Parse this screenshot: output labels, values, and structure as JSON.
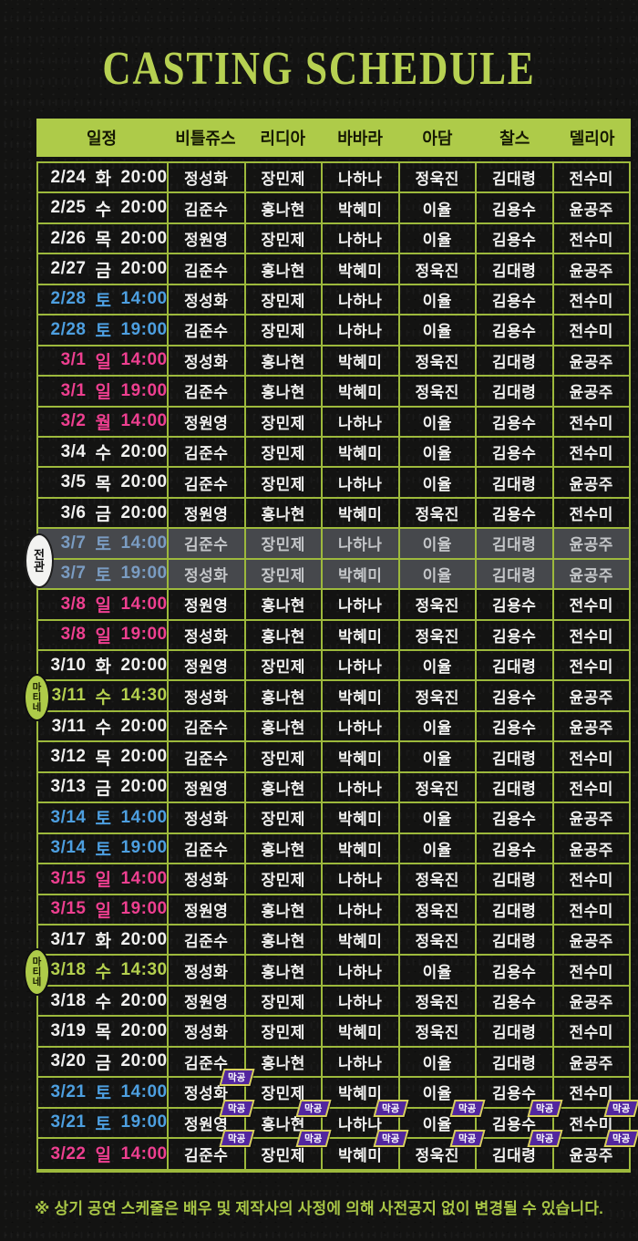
{
  "title": "CASTING SCHEDULE",
  "footer": "※ 상기 공연 스케줄은 배우 및 제작사의 사정에 의해 사전공지 없이 변경될 수 있습니다.",
  "columns": [
    "일정",
    "비틀쥬스",
    "리디아",
    "바바라",
    "아담",
    "찰스",
    "델리아"
  ],
  "badge_labels": {
    "final": "막공",
    "soldout": "전관",
    "matinee": "마티네"
  },
  "colors": {
    "background": "#131312",
    "accent_green": "#aecb49",
    "grid_green": "#9db93c",
    "saturday_blue": "#4d9fe0",
    "sunday_pink": "#ee3f90",
    "matinee_green": "#b4d04e",
    "soldout_gray": "#46484c",
    "final_badge_purple": "#52269f",
    "final_badge_border": "#d8d05c"
  },
  "rows": [
    {
      "date": "2/24",
      "day": "화",
      "time": "20:00",
      "type": "wd",
      "cast": [
        "정성화",
        "장민제",
        "나하나",
        "정욱진",
        "김대령",
        "전수미"
      ]
    },
    {
      "date": "2/25",
      "day": "수",
      "time": "20:00",
      "type": "wd",
      "cast": [
        "김준수",
        "홍나현",
        "박혜미",
        "이율",
        "김용수",
        "윤공주"
      ]
    },
    {
      "date": "2/26",
      "day": "목",
      "time": "20:00",
      "type": "wd",
      "cast": [
        "정원영",
        "장민제",
        "나하나",
        "이율",
        "김용수",
        "전수미"
      ]
    },
    {
      "date": "2/27",
      "day": "금",
      "time": "20:00",
      "type": "wd",
      "cast": [
        "김준수",
        "홍나현",
        "박혜미",
        "정욱진",
        "김대령",
        "윤공주"
      ]
    },
    {
      "date": "2/28",
      "day": "토",
      "time": "14:00",
      "type": "sat",
      "cast": [
        "정성화",
        "장민제",
        "나하나",
        "이율",
        "김용수",
        "전수미"
      ]
    },
    {
      "date": "2/28",
      "day": "토",
      "time": "19:00",
      "type": "sat",
      "cast": [
        "김준수",
        "장민제",
        "나하나",
        "이율",
        "김용수",
        "전수미"
      ]
    },
    {
      "date": "3/1",
      "day": "일",
      "time": "14:00",
      "type": "sun",
      "cast": [
        "정성화",
        "홍나현",
        "박혜미",
        "정욱진",
        "김대령",
        "윤공주"
      ]
    },
    {
      "date": "3/1",
      "day": "일",
      "time": "19:00",
      "type": "sun",
      "cast": [
        "김준수",
        "홍나현",
        "박혜미",
        "정욱진",
        "김대령",
        "윤공주"
      ]
    },
    {
      "date": "3/2",
      "day": "월",
      "time": "14:00",
      "type": "sun",
      "cast": [
        "정원영",
        "장민제",
        "나하나",
        "이율",
        "김용수",
        "전수미"
      ]
    },
    {
      "date": "3/4",
      "day": "수",
      "time": "20:00",
      "type": "wd",
      "cast": [
        "김준수",
        "장민제",
        "박혜미",
        "이율",
        "김용수",
        "전수미"
      ]
    },
    {
      "date": "3/5",
      "day": "목",
      "time": "20:00",
      "type": "wd",
      "cast": [
        "김준수",
        "장민제",
        "나하나",
        "이율",
        "김대령",
        "윤공주"
      ]
    },
    {
      "date": "3/6",
      "day": "금",
      "time": "20:00",
      "type": "wd",
      "cast": [
        "정원영",
        "홍나현",
        "박혜미",
        "정욱진",
        "김용수",
        "전수미"
      ]
    },
    {
      "date": "3/7",
      "day": "토",
      "time": "14:00",
      "type": "sat",
      "soldout": true,
      "cast": [
        "김준수",
        "장민제",
        "나하나",
        "이율",
        "김대령",
        "윤공주"
      ]
    },
    {
      "date": "3/7",
      "day": "토",
      "time": "19:00",
      "type": "sat",
      "soldout": true,
      "cast": [
        "정성화",
        "장민제",
        "박혜미",
        "이율",
        "김대령",
        "윤공주"
      ]
    },
    {
      "date": "3/8",
      "day": "일",
      "time": "14:00",
      "type": "sun",
      "cast": [
        "정원영",
        "홍나현",
        "나하나",
        "정욱진",
        "김용수",
        "전수미"
      ]
    },
    {
      "date": "3/8",
      "day": "일",
      "time": "19:00",
      "type": "sun",
      "cast": [
        "정성화",
        "홍나현",
        "박혜미",
        "정욱진",
        "김용수",
        "전수미"
      ]
    },
    {
      "date": "3/10",
      "day": "화",
      "time": "20:00",
      "type": "wd",
      "cast": [
        "정원영",
        "장민제",
        "나하나",
        "이율",
        "김대령",
        "전수미"
      ]
    },
    {
      "date": "3/11",
      "day": "수",
      "time": "14:30",
      "type": "mat",
      "cast": [
        "정성화",
        "홍나현",
        "박혜미",
        "정욱진",
        "김용수",
        "윤공주"
      ]
    },
    {
      "date": "3/11",
      "day": "수",
      "time": "20:00",
      "type": "wd",
      "cast": [
        "김준수",
        "홍나현",
        "나하나",
        "이율",
        "김용수",
        "윤공주"
      ]
    },
    {
      "date": "3/12",
      "day": "목",
      "time": "20:00",
      "type": "wd",
      "cast": [
        "김준수",
        "장민제",
        "박혜미",
        "이율",
        "김대령",
        "전수미"
      ]
    },
    {
      "date": "3/13",
      "day": "금",
      "time": "20:00",
      "type": "wd",
      "cast": [
        "정원영",
        "홍나현",
        "나하나",
        "정욱진",
        "김대령",
        "전수미"
      ]
    },
    {
      "date": "3/14",
      "day": "토",
      "time": "14:00",
      "type": "sat",
      "cast": [
        "정성화",
        "장민제",
        "박혜미",
        "이율",
        "김용수",
        "윤공주"
      ]
    },
    {
      "date": "3/14",
      "day": "토",
      "time": "19:00",
      "type": "sat",
      "cast": [
        "김준수",
        "홍나현",
        "박혜미",
        "이율",
        "김용수",
        "윤공주"
      ]
    },
    {
      "date": "3/15",
      "day": "일",
      "time": "14:00",
      "type": "sun",
      "cast": [
        "정성화",
        "장민제",
        "나하나",
        "정욱진",
        "김대령",
        "전수미"
      ]
    },
    {
      "date": "3/15",
      "day": "일",
      "time": "19:00",
      "type": "sun",
      "cast": [
        "정원영",
        "홍나현",
        "나하나",
        "정욱진",
        "김대령",
        "전수미"
      ]
    },
    {
      "date": "3/17",
      "day": "화",
      "time": "20:00",
      "type": "wd",
      "cast": [
        "김준수",
        "홍나현",
        "박혜미",
        "정욱진",
        "김대령",
        "윤공주"
      ]
    },
    {
      "date": "3/18",
      "day": "수",
      "time": "14:30",
      "type": "mat",
      "cast": [
        "정성화",
        "홍나현",
        "나하나",
        "이율",
        "김용수",
        "전수미"
      ]
    },
    {
      "date": "3/18",
      "day": "수",
      "time": "20:00",
      "type": "wd",
      "cast": [
        "정원영",
        "장민제",
        "나하나",
        "정욱진",
        "김용수",
        "윤공주"
      ]
    },
    {
      "date": "3/19",
      "day": "목",
      "time": "20:00",
      "type": "wd",
      "cast": [
        "정성화",
        "장민제",
        "박혜미",
        "정욱진",
        "김대령",
        "전수미"
      ]
    },
    {
      "date": "3/20",
      "day": "금",
      "time": "20:00",
      "type": "wd",
      "cast": [
        "김준수",
        "홍나현",
        "나하나",
        "이율",
        "김대령",
        "윤공주"
      ]
    },
    {
      "date": "3/21",
      "day": "토",
      "time": "14:00",
      "type": "sat",
      "cast": [
        "정성화",
        "장민제",
        "박혜미",
        "이율",
        "김용수",
        "전수미"
      ],
      "final": [
        true,
        false,
        false,
        false,
        false,
        false
      ]
    },
    {
      "date": "3/21",
      "day": "토",
      "time": "19:00",
      "type": "sat",
      "cast": [
        "정원영",
        "홍나현",
        "나하나",
        "이율",
        "김용수",
        "전수미"
      ],
      "final": [
        true,
        true,
        true,
        true,
        true,
        true
      ]
    },
    {
      "date": "3/22",
      "day": "일",
      "time": "14:00",
      "type": "sun",
      "cast": [
        "김준수",
        "장민제",
        "박혜미",
        "정욱진",
        "김대령",
        "윤공주"
      ],
      "final": [
        true,
        true,
        true,
        true,
        true,
        true
      ]
    }
  ],
  "left_markers": [
    {
      "label": "전관",
      "kind": "soldout",
      "row": 12,
      "span": 2
    },
    {
      "label": "마티네",
      "kind": "matinee",
      "row": 17,
      "span": 1
    },
    {
      "label": "마티네",
      "kind": "matinee",
      "row": 26,
      "span": 1
    }
  ]
}
